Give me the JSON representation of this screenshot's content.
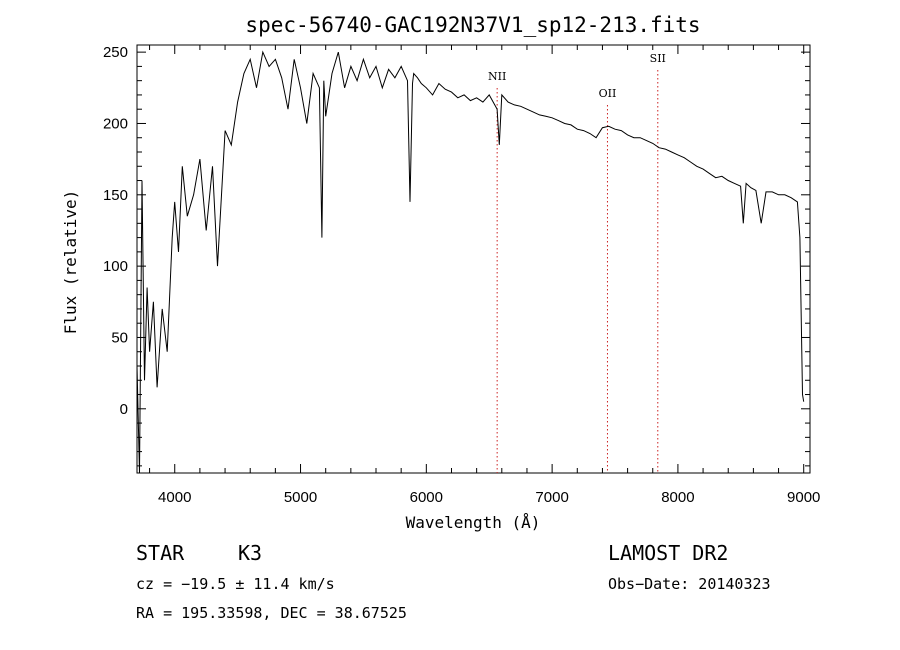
{
  "chart_data": {
    "type": "line",
    "title": "spec-56740-GAC192N37V1_sp12-213.fits",
    "xlabel": "Wavelength (Å)",
    "ylabel": "Flux (relative)",
    "xlim": [
      3700,
      9050
    ],
    "ylim": [
      -45,
      255
    ],
    "xticks": [
      4000,
      5000,
      6000,
      7000,
      8000,
      9000
    ],
    "yticks": [
      0,
      50,
      100,
      150,
      200,
      250
    ],
    "grid": false,
    "series": [
      {
        "name": "flux",
        "x": [
          3700,
          3720,
          3740,
          3760,
          3780,
          3800,
          3830,
          3860,
          3900,
          3940,
          3980,
          4000,
          4030,
          4060,
          4100,
          4150,
          4200,
          4250,
          4300,
          4340,
          4400,
          4450,
          4500,
          4550,
          4600,
          4650,
          4700,
          4750,
          4800,
          4850,
          4900,
          4950,
          5000,
          5050,
          5100,
          5150,
          5170,
          5185,
          5200,
          5250,
          5300,
          5350,
          5400,
          5450,
          5500,
          5550,
          5600,
          5650,
          5700,
          5750,
          5800,
          5850,
          5870,
          5890,
          5900,
          5930,
          5960,
          6000,
          6050,
          6100,
          6150,
          6200,
          6250,
          6300,
          6350,
          6400,
          6450,
          6500,
          6550,
          6563,
          6580,
          6600,
          6650,
          6700,
          6750,
          6800,
          6850,
          6900,
          6950,
          7000,
          7050,
          7100,
          7150,
          7200,
          7250,
          7300,
          7350,
          7400,
          7450,
          7500,
          7550,
          7600,
          7650,
          7700,
          7750,
          7800,
          7850,
          7900,
          7950,
          8000,
          8050,
          8100,
          8150,
          8200,
          8250,
          8300,
          8350,
          8400,
          8450,
          8498,
          8520,
          8542,
          8580,
          8620,
          8662,
          8700,
          8750,
          8800,
          8850,
          8900,
          8950,
          8970,
          8990,
          9000
        ],
        "y": [
          30,
          -45,
          160,
          20,
          85,
          40,
          75,
          15,
          70,
          40,
          120,
          145,
          110,
          170,
          135,
          150,
          175,
          125,
          170,
          100,
          195,
          185,
          215,
          235,
          245,
          225,
          250,
          240,
          245,
          232,
          210,
          245,
          225,
          200,
          235,
          225,
          120,
          230,
          205,
          235,
          250,
          225,
          240,
          230,
          245,
          232,
          240,
          225,
          238,
          232,
          240,
          230,
          145,
          228,
          235,
          232,
          228,
          225,
          220,
          228,
          224,
          222,
          218,
          220,
          216,
          218,
          215,
          220,
          212,
          210,
          185,
          220,
          215,
          213,
          212,
          210,
          208,
          206,
          205,
          204,
          202,
          200,
          199,
          196,
          195,
          193,
          190,
          197,
          198,
          196,
          195,
          192,
          190,
          190,
          188,
          186,
          183,
          182,
          180,
          178,
          176,
          173,
          170,
          168,
          165,
          162,
          163,
          160,
          158,
          156,
          130,
          158,
          155,
          153,
          130,
          152,
          152,
          150,
          150,
          148,
          145,
          120,
          10,
          5
        ]
      }
    ],
    "lines": [
      {
        "label": "NII",
        "x": 6563
      },
      {
        "label": "OII",
        "x": 7440
      },
      {
        "label": "SII",
        "x": 7840
      }
    ]
  },
  "footer": {
    "object_class": "STAR",
    "subclass": "K3",
    "survey": "LAMOST DR2",
    "cz": "cz = −19.5 ± 11.4 km/s",
    "obs_date": "Obs−Date: 20140323",
    "coords": "RA = 195.33598, DEC =  38.67525"
  }
}
